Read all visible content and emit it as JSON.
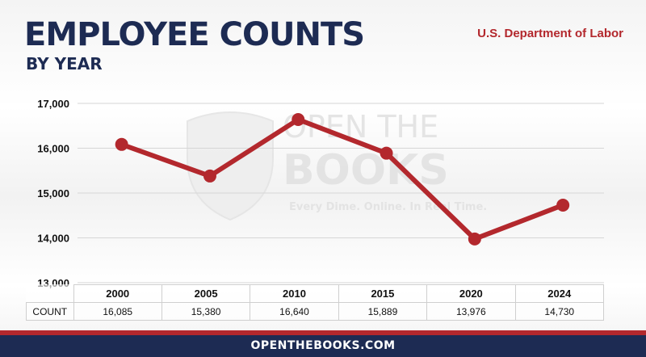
{
  "header": {
    "title": "EMPLOYEE COUNTS",
    "subtitle": "BY YEAR",
    "agency": "U.S. Department of Labor"
  },
  "watermark": {
    "line1": "OPEN THE",
    "line2": "BOOKS",
    "tagline": "Every Dime. Online. In Real Time."
  },
  "chart_data": {
    "type": "line",
    "title": "EMPLOYEE COUNTS",
    "subtitle": "BY YEAR",
    "categories": [
      "2000",
      "2005",
      "2010",
      "2015",
      "2020",
      "2024"
    ],
    "values": [
      16085,
      15380,
      16640,
      15889,
      13976,
      14730
    ],
    "value_labels": [
      "16,085",
      "15,380",
      "16,640",
      "15,889",
      "13,976",
      "14,730"
    ],
    "yticks": [
      "13,000",
      "14,000",
      "15,000",
      "16,000",
      "17,000"
    ],
    "ytick_values": [
      13000,
      14000,
      15000,
      16000,
      17000
    ],
    "ylim": [
      13000,
      17000
    ],
    "grid": true,
    "series_color": "#b3282d"
  },
  "table": {
    "row_label": "COUNT"
  },
  "colors": {
    "navy": "#1d2b53",
    "red": "#b3282d"
  },
  "footer": {
    "text": "OPENTHEBOOKS.COM"
  }
}
